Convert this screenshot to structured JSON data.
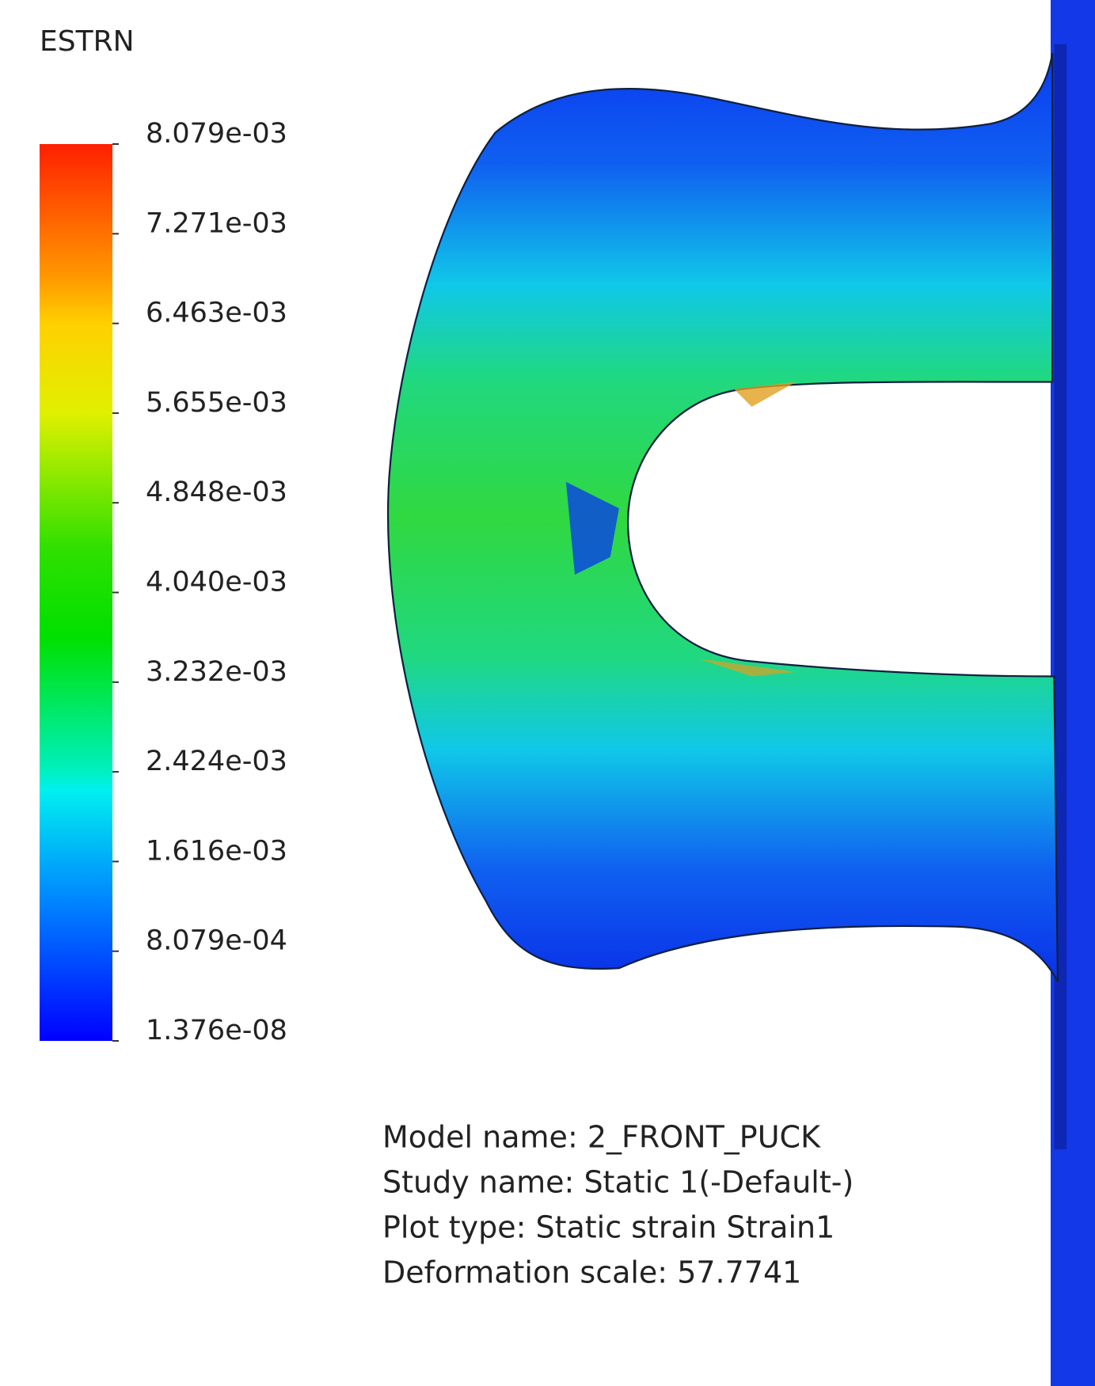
{
  "legend": {
    "title": "ESTRN",
    "labels": [
      "8.079e-03",
      "7.271e-03",
      "6.463e-03",
      "5.655e-03",
      "4.848e-03",
      "4.040e-03",
      "3.232e-03",
      "2.424e-03",
      "1.616e-03",
      "8.079e-04",
      "1.376e-08"
    ]
  },
  "info": {
    "lines": [
      "Model name: 2_FRONT_PUCK",
      "Study name: Static 1(-Default-)",
      "Plot type: Static strain Strain1",
      "Deformation scale: 57.7741"
    ]
  }
}
